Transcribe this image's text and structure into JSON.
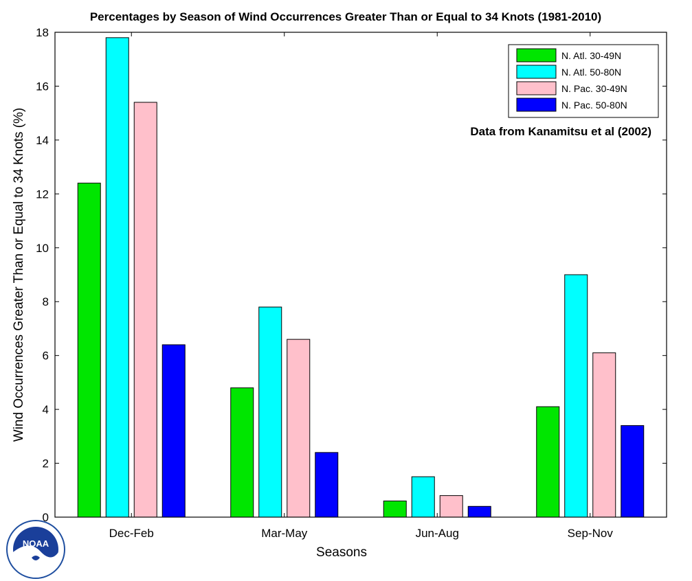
{
  "chart_data": {
    "type": "bar",
    "title": "Percentages by Season of Wind Occurrences Greater Than or Equal to 34 Knots (1981-2010)",
    "xlabel": "Seasons",
    "ylabel": "Wind Occurrences Greater Than or Equal to 34 Knots (%)",
    "categories": [
      "Dec-Feb",
      "Mar-May",
      "Jun-Aug",
      "Sep-Nov"
    ],
    "ylim": [
      0,
      18
    ],
    "yticks": [
      0,
      2,
      4,
      6,
      8,
      10,
      12,
      14,
      16,
      18
    ],
    "grid": false,
    "legend_position": "top-right",
    "annotation": "Data from Kanamitsu et al (2002)",
    "series": [
      {
        "name": "N. Atl. 30-49N",
        "color": "#00e600",
        "values": [
          12.4,
          4.8,
          0.6,
          4.1
        ]
      },
      {
        "name": "N. Atl. 50-80N",
        "color": "#00ffff",
        "values": [
          17.8,
          7.8,
          1.5,
          9.0
        ]
      },
      {
        "name": "N. Pac. 30-49N",
        "color": "#ffc0cb",
        "values": [
          15.4,
          6.6,
          0.8,
          6.1
        ]
      },
      {
        "name": "N. Pac. 50-80N",
        "color": "#0000ff",
        "values": [
          6.4,
          2.4,
          0.4,
          3.4
        ]
      }
    ]
  },
  "logo": {
    "text": "NOAA",
    "icon": "noaa-logo"
  }
}
